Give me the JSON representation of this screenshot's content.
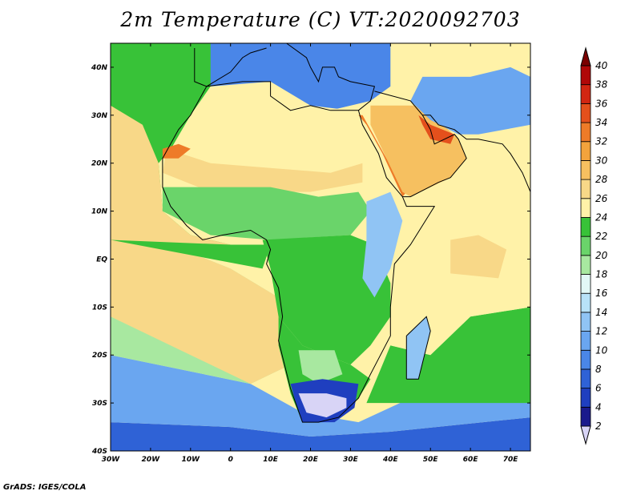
{
  "title": "2m Temperature (C) VT:2020092703",
  "footer": "GrADS: IGES/COLA",
  "map": {
    "lon_range": [
      -30,
      75
    ],
    "lat_range": [
      -40,
      45
    ],
    "x_ticks": [
      {
        "lon": -30,
        "label": "30W"
      },
      {
        "lon": -20,
        "label": "20W"
      },
      {
        "lon": -10,
        "label": "10W"
      },
      {
        "lon": 0,
        "label": "0"
      },
      {
        "lon": 10,
        "label": "10E"
      },
      {
        "lon": 20,
        "label": "20E"
      },
      {
        "lon": 30,
        "label": "30E"
      },
      {
        "lon": 40,
        "label": "40E"
      },
      {
        "lon": 50,
        "label": "50E"
      },
      {
        "lon": 60,
        "label": "60E"
      },
      {
        "lon": 70,
        "label": "70E"
      }
    ],
    "y_ticks": [
      {
        "lat": 40,
        "label": "40N"
      },
      {
        "lat": 30,
        "label": "30N"
      },
      {
        "lat": 20,
        "label": "20N"
      },
      {
        "lat": 10,
        "label": "10N"
      },
      {
        "lat": 0,
        "label": "EQ"
      },
      {
        "lat": -10,
        "label": "10S"
      },
      {
        "lat": -20,
        "label": "20S"
      },
      {
        "lat": -30,
        "label": "30S"
      },
      {
        "lat": -40,
        "label": "40S"
      }
    ]
  },
  "colorbar": {
    "levels": [
      "2",
      "4",
      "6",
      "8",
      "10",
      "12",
      "14",
      "16",
      "18",
      "20",
      "22",
      "24",
      "26",
      "28",
      "30",
      "32",
      "34",
      "36",
      "38",
      "40"
    ],
    "colors": [
      "#d8d4f6",
      "#1a1a8c",
      "#1f3fbf",
      "#2f62d6",
      "#4a86e8",
      "#6aa6f0",
      "#90c4f4",
      "#b8e2f8",
      "#e2f8f6",
      "#a8e8a0",
      "#6ad46a",
      "#38c238",
      "#fff2a8",
      "#f8d888",
      "#f6c060",
      "#f3a33c",
      "#ee7b28",
      "#e4501c",
      "#d22612",
      "#b00808",
      "#7a0000"
    ]
  },
  "zones": [
    {
      "name": "north-atlantic",
      "color": "#38c238"
    },
    {
      "name": "tropical-atlantic",
      "color": "#f8d888"
    },
    {
      "name": "south-atlantic",
      "color": "#a8e8a0"
    },
    {
      "name": "southern-ocean",
      "color": "#6aa6f0"
    },
    {
      "name": "far-south-ocean",
      "color": "#2f62d6"
    },
    {
      "name": "indian-ocean",
      "color": "#fff2a8"
    },
    {
      "name": "indian-warm-pool",
      "color": "#f8d888"
    },
    {
      "name": "south-indian-ocean",
      "color": "#38c238"
    },
    {
      "name": "mediterranean",
      "color": "#4a86e8"
    },
    {
      "name": "sahara",
      "color": "#fff2a8"
    },
    {
      "name": "sahel",
      "color": "#f8d888"
    },
    {
      "name": "west-africa",
      "color": "#6ad46a"
    },
    {
      "name": "central-africa",
      "color": "#38c238"
    },
    {
      "name": "east-highlands",
      "color": "#90c4f4"
    },
    {
      "name": "southern-africa",
      "color": "#38c238"
    },
    {
      "name": "kalahari",
      "color": "#a8e8a0"
    },
    {
      "name": "south-africa-cold",
      "color": "#1f3fbf"
    },
    {
      "name": "lesotho",
      "color": "#d8d4f6"
    },
    {
      "name": "red-sea",
      "color": "#ee7b28"
    },
    {
      "name": "persian-gulf",
      "color": "#e4501c"
    },
    {
      "name": "arabia",
      "color": "#f6c060"
    },
    {
      "name": "iran",
      "color": "#6aa6f0"
    },
    {
      "name": "madagascar",
      "color": "#90c4f4"
    },
    {
      "name": "western-sahara-hot",
      "color": "#ee7b28"
    }
  ]
}
